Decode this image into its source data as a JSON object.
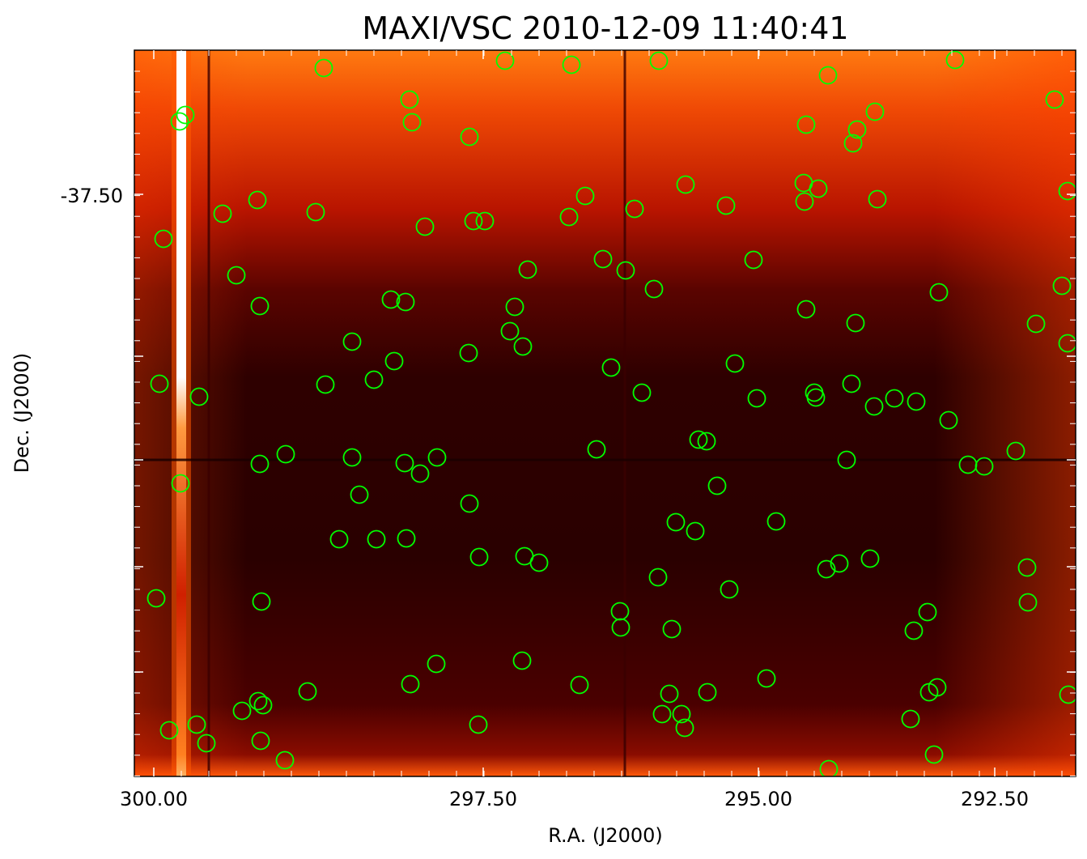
{
  "title": "MAXI/VSC 2010-12-09 11:40:41",
  "xlabel": "R.A. (J2000)",
  "ylabel": "Dec. (J2000)",
  "x_ticks": [
    "300.00",
    "297.50",
    "295.00",
    "292.50"
  ],
  "y_ticks": [
    "-37.50"
  ],
  "colors": {
    "marker": "#00ff00",
    "background_dark": "#2a0000",
    "background_mid": "#8a0c00",
    "background_bright": "#ff7a10",
    "stripe": "#ffffff"
  },
  "image": {
    "colormap": "heat (black-red-orange-white)",
    "features": [
      "bright vertical stripe near left edge",
      "dark crosshair lines",
      "bright top and bottom bands"
    ]
  },
  "markers": {
    "shape": "circle",
    "note_count_visible": 133
  }
}
